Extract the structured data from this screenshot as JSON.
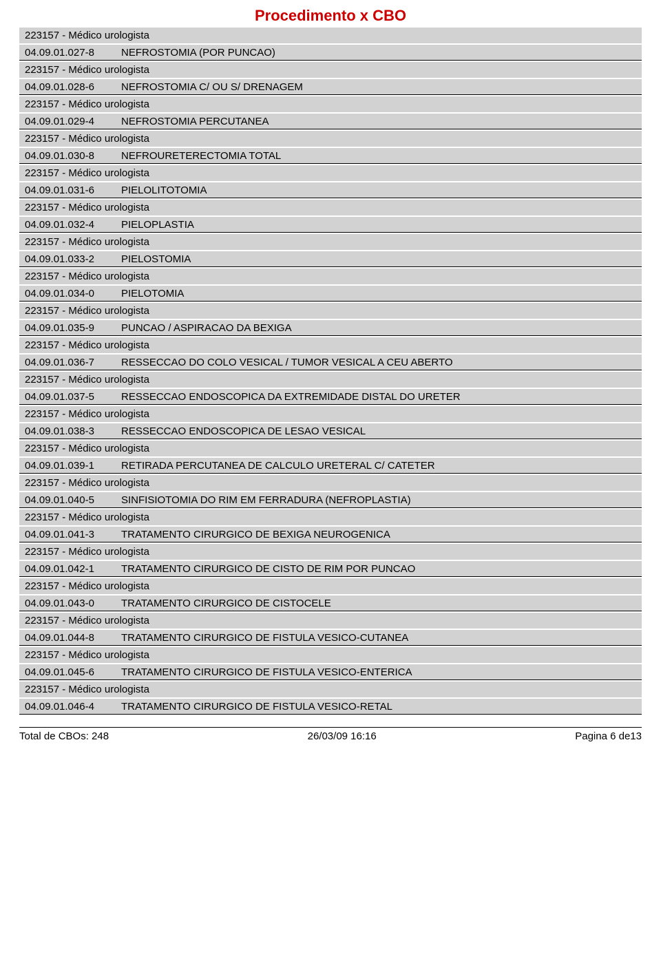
{
  "title": "Procedimento x CBO",
  "top_sub": "223157 - Médico urologista",
  "cbo_text": "223157 - Médico urologista",
  "procedures": [
    {
      "code": "04.09.01.027-8",
      "desc": "NEFROSTOMIA (POR PUNCAO)"
    },
    {
      "code": "04.09.01.028-6",
      "desc": "NEFROSTOMIA C/ OU S/ DRENAGEM"
    },
    {
      "code": "04.09.01.029-4",
      "desc": "NEFROSTOMIA PERCUTANEA"
    },
    {
      "code": "04.09.01.030-8",
      "desc": "NEFROURETERECTOMIA TOTAL"
    },
    {
      "code": "04.09.01.031-6",
      "desc": "PIELOLITOTOMIA"
    },
    {
      "code": "04.09.01.032-4",
      "desc": "PIELOPLASTIA"
    },
    {
      "code": "04.09.01.033-2",
      "desc": "PIELOSTOMIA"
    },
    {
      "code": "04.09.01.034-0",
      "desc": "PIELOTOMIA"
    },
    {
      "code": "04.09.01.035-9",
      "desc": "PUNCAO / ASPIRACAO DA BEXIGA"
    },
    {
      "code": "04.09.01.036-7",
      "desc": "RESSECCAO DO COLO VESICAL / TUMOR VESICAL A CEU ABERTO"
    },
    {
      "code": "04.09.01.037-5",
      "desc": "RESSECCAO ENDOSCOPICA DA EXTREMIDADE DISTAL DO URETER"
    },
    {
      "code": "04.09.01.038-3",
      "desc": "RESSECCAO ENDOSCOPICA DE LESAO VESICAL"
    },
    {
      "code": "04.09.01.039-1",
      "desc": "RETIRADA PERCUTANEA DE CALCULO URETERAL C/ CATETER"
    },
    {
      "code": "04.09.01.040-5",
      "desc": "SINFISIOTOMIA DO RIM EM FERRADURA (NEFROPLASTIA)"
    },
    {
      "code": "04.09.01.041-3",
      "desc": "TRATAMENTO CIRURGICO DE BEXIGA NEUROGENICA"
    },
    {
      "code": "04.09.01.042-1",
      "desc": "TRATAMENTO CIRURGICO DE CISTO DE RIM POR PUNCAO"
    },
    {
      "code": "04.09.01.043-0",
      "desc": "TRATAMENTO CIRURGICO DE CISTOCELE"
    },
    {
      "code": "04.09.01.044-8",
      "desc": "TRATAMENTO CIRURGICO DE FISTULA VESICO-CUTANEA"
    },
    {
      "code": "04.09.01.045-6",
      "desc": "TRATAMENTO CIRURGICO DE FISTULA VESICO-ENTERICA"
    },
    {
      "code": "04.09.01.046-4",
      "desc": "TRATAMENTO CIRURGICO DE FISTULA VESICO-RETAL",
      "no_sub": true
    }
  ],
  "footer": {
    "left": "Total de CBOs: 248",
    "center": "26/03/09 16:16",
    "right": "Pagina 6 de13"
  },
  "colors": {
    "title": "#cc0000",
    "row_bg": "#d2d2d2",
    "text": "#000000",
    "page_bg": "#ffffff"
  }
}
